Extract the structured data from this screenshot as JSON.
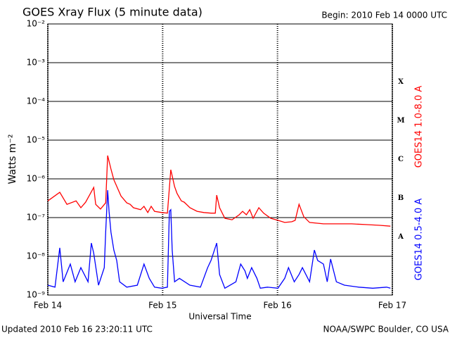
{
  "chart_data": {
    "type": "line",
    "title": "GOES Xray Flux (5 minute data)",
    "subtitle": "Begin:  2010 Feb 14 0000 UTC",
    "x_label": "Universal Time",
    "y_label": "Watts m⁻²",
    "footer_left": "Updated 2010 Feb 16 23:20:11 UTC",
    "footer_right": "NOAA/SWPC Boulder, CO USA",
    "ylog": true,
    "grid": true,
    "xlim": [
      0,
      72
    ],
    "ylim": [
      1e-09,
      0.01
    ],
    "xticks": [
      {
        "value": 0,
        "label": "Feb 14"
      },
      {
        "value": 24,
        "label": "Feb 15"
      },
      {
        "value": 48,
        "label": "Feb 16"
      },
      {
        "value": 72,
        "label": "Feb 17"
      }
    ],
    "yticks": [
      {
        "value": 1e-09,
        "label": "10⁻⁹"
      },
      {
        "value": 1e-08,
        "label": "10⁻⁸"
      },
      {
        "value": 1e-07,
        "label": "10⁻⁷"
      },
      {
        "value": 1e-06,
        "label": "10⁻⁶"
      },
      {
        "value": 1e-05,
        "label": "10⁻⁵"
      },
      {
        "value": 0.0001,
        "label": "10⁻⁴"
      },
      {
        "value": 0.001,
        "label": "10⁻³"
      },
      {
        "value": 0.01,
        "label": "10⁻²"
      }
    ],
    "class_labels": [
      {
        "value": 1e-08,
        "label": "A"
      },
      {
        "value": 1e-07,
        "label": "B"
      },
      {
        "value": 1e-06,
        "label": "C"
      },
      {
        "value": 1e-05,
        "label": "M"
      },
      {
        "value": 0.0001,
        "label": "X"
      }
    ],
    "series": [
      {
        "name": "GOES14 1.0-8.0 A",
        "color": "#ff0000",
        "x": [
          0,
          2.5,
          4.0,
          5.9,
          6.9,
          7.9,
          9.6,
          10.0,
          11.0,
          12.1,
          12.5,
          13.2,
          13.8,
          14.6,
          15.3,
          16.5,
          17.2,
          17.9,
          19.4,
          20.1,
          20.9,
          21.6,
          22.3,
          23.8,
          25.0,
          25.7,
          26.5,
          27.0,
          27.9,
          28.5,
          29.7,
          31.2,
          32.6,
          34.1,
          35.0,
          35.3,
          35.9,
          37.0,
          38.5,
          40.0,
          40.7,
          41.5,
          42.2,
          42.9,
          44.1,
          45.1,
          46.6,
          48.1,
          49.5,
          51.0,
          51.7,
          52.5,
          53.5,
          54.7,
          57.6,
          60.6,
          63.5,
          66.4,
          69.4,
          71.6
        ],
        "values": [
          2.7e-07,
          4.5e-07,
          2.2e-07,
          2.7e-07,
          1.8e-07,
          2.5e-07,
          6e-07,
          2.2e-07,
          1.66e-07,
          2.4e-07,
          4e-06,
          1.8e-06,
          9.5e-07,
          5.6e-07,
          3.6e-07,
          2.4e-07,
          2.2e-07,
          1.8e-07,
          1.6e-07,
          1.95e-07,
          1.35e-07,
          1.95e-07,
          1.45e-07,
          1.35e-07,
          1.3e-07,
          1.72e-06,
          6.3e-07,
          4.2e-07,
          2.7e-07,
          2.5e-07,
          1.8e-07,
          1.45e-07,
          1.35e-07,
          1.3e-07,
          1.3e-07,
          3.8e-07,
          1.8e-07,
          9.6e-08,
          8.8e-08,
          1.18e-07,
          1.45e-07,
          1.18e-07,
          1.6e-07,
          9.6e-08,
          1.8e-07,
          1.3e-07,
          9.6e-08,
          8.5e-08,
          7.5e-08,
          7.8e-08,
          8.5e-08,
          2.2e-07,
          1.05e-07,
          7.5e-08,
          6.9e-08,
          6.9e-08,
          6.9e-08,
          6.6e-08,
          6.3e-08,
          6e-08
        ]
      },
      {
        "name": "GOES14 0.5-4.0 A",
        "color": "#0000ff",
        "x": [
          0,
          1.5,
          2.5,
          3.2,
          4.7,
          5.7,
          6.9,
          8.4,
          9.1,
          9.6,
          10.6,
          11.8,
          12.1,
          12.5,
          12.8,
          13.2,
          13.8,
          14.4,
          15.0,
          16.5,
          18.7,
          20.1,
          21.2,
          22.3,
          23.8,
          25.0,
          25.4,
          25.7,
          26.0,
          26.5,
          27.5,
          29.7,
          31.9,
          33.4,
          34.1,
          35.3,
          35.9,
          37.0,
          39.3,
          40.3,
          41.2,
          41.7,
          42.6,
          43.7,
          44.4,
          45.9,
          48.1,
          49.5,
          50.3,
          51.5,
          52.5,
          53.2,
          54.7,
          55.7,
          56.4,
          57.6,
          58.4,
          59.1,
          60.3,
          62.0,
          65.0,
          67.9,
          70.8,
          71.6
        ],
        "values": [
          1.8e-09,
          1.6e-09,
          1.65e-08,
          2.2e-09,
          6.3e-09,
          2.2e-09,
          5.1e-09,
          2.2e-09,
          2.2e-08,
          1.2e-08,
          1.8e-09,
          5.1e-09,
          4.2e-08,
          5.1e-07,
          1.45e-07,
          4.2e-08,
          1.45e-08,
          7.8e-09,
          2.2e-09,
          1.6e-09,
          1.8e-09,
          6.3e-09,
          2.7e-09,
          1.6e-09,
          1.5e-09,
          1.6e-09,
          1.45e-07,
          1.6e-07,
          1.45e-08,
          2.2e-09,
          2.7e-09,
          1.8e-09,
          1.6e-09,
          5.1e-09,
          7.8e-09,
          2.2e-08,
          3.4e-09,
          1.5e-09,
          2.2e-09,
          6.3e-09,
          4.2e-09,
          2.7e-09,
          5.1e-09,
          2.7e-09,
          1.5e-09,
          1.6e-09,
          1.5e-09,
          2.7e-09,
          5.1e-09,
          2.2e-09,
          3.4e-09,
          5.1e-09,
          2.2e-09,
          1.45e-08,
          7.8e-09,
          6.3e-09,
          2.2e-09,
          8.5e-09,
          2.2e-09,
          1.8e-09,
          1.6e-09,
          1.5e-09,
          1.6e-09,
          1.5e-09
        ]
      }
    ]
  }
}
